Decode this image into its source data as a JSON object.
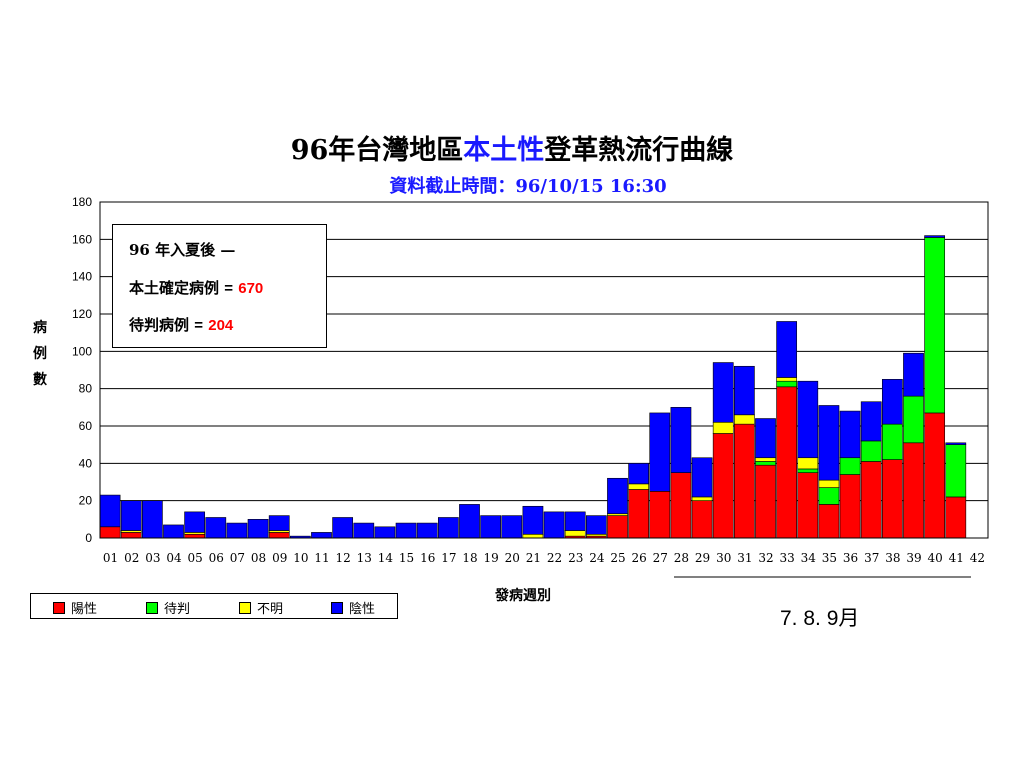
{
  "title_prefix": "96年台灣地區",
  "title_highlight": "本土性",
  "title_suffix": "登革熱流行曲線",
  "subtitle": "資料截止時間：96/10/15 16:30",
  "info_box": {
    "line1": "96 年入夏後 —",
    "line2_label": "本土確定病例",
    "line2_eq": "=",
    "line2_value": "670",
    "line3_label": "待判病例",
    "line3_eq": "=",
    "line3_value": "204"
  },
  "period_annotation": "7. 8. 9月",
  "legend": [
    {
      "name": "陽性",
      "color": "#ff0000"
    },
    {
      "name": "待判",
      "color": "#00ff00"
    },
    {
      "name": "不明",
      "color": "#ffff00"
    },
    {
      "name": "陰性",
      "color": "#0000ff"
    }
  ],
  "chart_data": {
    "type": "bar",
    "stacked": true,
    "ylabel": "病例數",
    "xlabel": "發病週別",
    "ylim": [
      0,
      180
    ],
    "yticks": [
      0,
      20,
      40,
      60,
      80,
      100,
      120,
      140,
      160,
      180
    ],
    "grid": true,
    "legend_position": "bottom-left",
    "categories": [
      "01",
      "02",
      "03",
      "04",
      "05",
      "06",
      "07",
      "08",
      "09",
      "10",
      "11",
      "12",
      "13",
      "14",
      "15",
      "16",
      "17",
      "18",
      "19",
      "20",
      "21",
      "22",
      "23",
      "24",
      "25",
      "26",
      "27",
      "28",
      "29",
      "30",
      "31",
      "32",
      "33",
      "34",
      "35",
      "36",
      "37",
      "38",
      "39",
      "40",
      "41"
    ],
    "extra_tick_labels": [
      "42"
    ],
    "series": [
      {
        "name": "陽性",
        "color": "#ff0000",
        "values": [
          6,
          3,
          0,
          0,
          2,
          0,
          0,
          0,
          3,
          0,
          0,
          0,
          0,
          0,
          0,
          0,
          0,
          0,
          0,
          0,
          0,
          0,
          1,
          1,
          12,
          26,
          25,
          35,
          20,
          56,
          61,
          39,
          81,
          35,
          18,
          34,
          41,
          42,
          51,
          67,
          22
        ]
      },
      {
        "name": "待判",
        "color": "#00ff00",
        "values": [
          0,
          0,
          0,
          0,
          0,
          0,
          0,
          0,
          0,
          0,
          0,
          0,
          0,
          0,
          0,
          0,
          0,
          0,
          0,
          0,
          0,
          0,
          0,
          0,
          0,
          0,
          0,
          0,
          0,
          0,
          0,
          2,
          3,
          2,
          9,
          9,
          11,
          19,
          25,
          94,
          28
        ]
      },
      {
        "name": "不明",
        "color": "#ffff00",
        "values": [
          0,
          1,
          0,
          0,
          1,
          0,
          0,
          0,
          1,
          0,
          0,
          0,
          0,
          0,
          0,
          0,
          0,
          0,
          0,
          0,
          2,
          0,
          3,
          1,
          1,
          3,
          0,
          0,
          2,
          6,
          5,
          2,
          2,
          6,
          4,
          0,
          0,
          0,
          0,
          0,
          0
        ]
      },
      {
        "name": "陰性",
        "color": "#0000ff",
        "values": [
          17,
          16,
          20,
          7,
          11,
          11,
          8,
          10,
          8,
          1,
          3,
          11,
          8,
          6,
          8,
          8,
          11,
          18,
          12,
          12,
          15,
          14,
          10,
          10,
          19,
          11,
          42,
          35,
          21,
          32,
          26,
          21,
          30,
          41,
          40,
          25,
          21,
          24,
          23,
          1,
          1
        ]
      }
    ]
  }
}
